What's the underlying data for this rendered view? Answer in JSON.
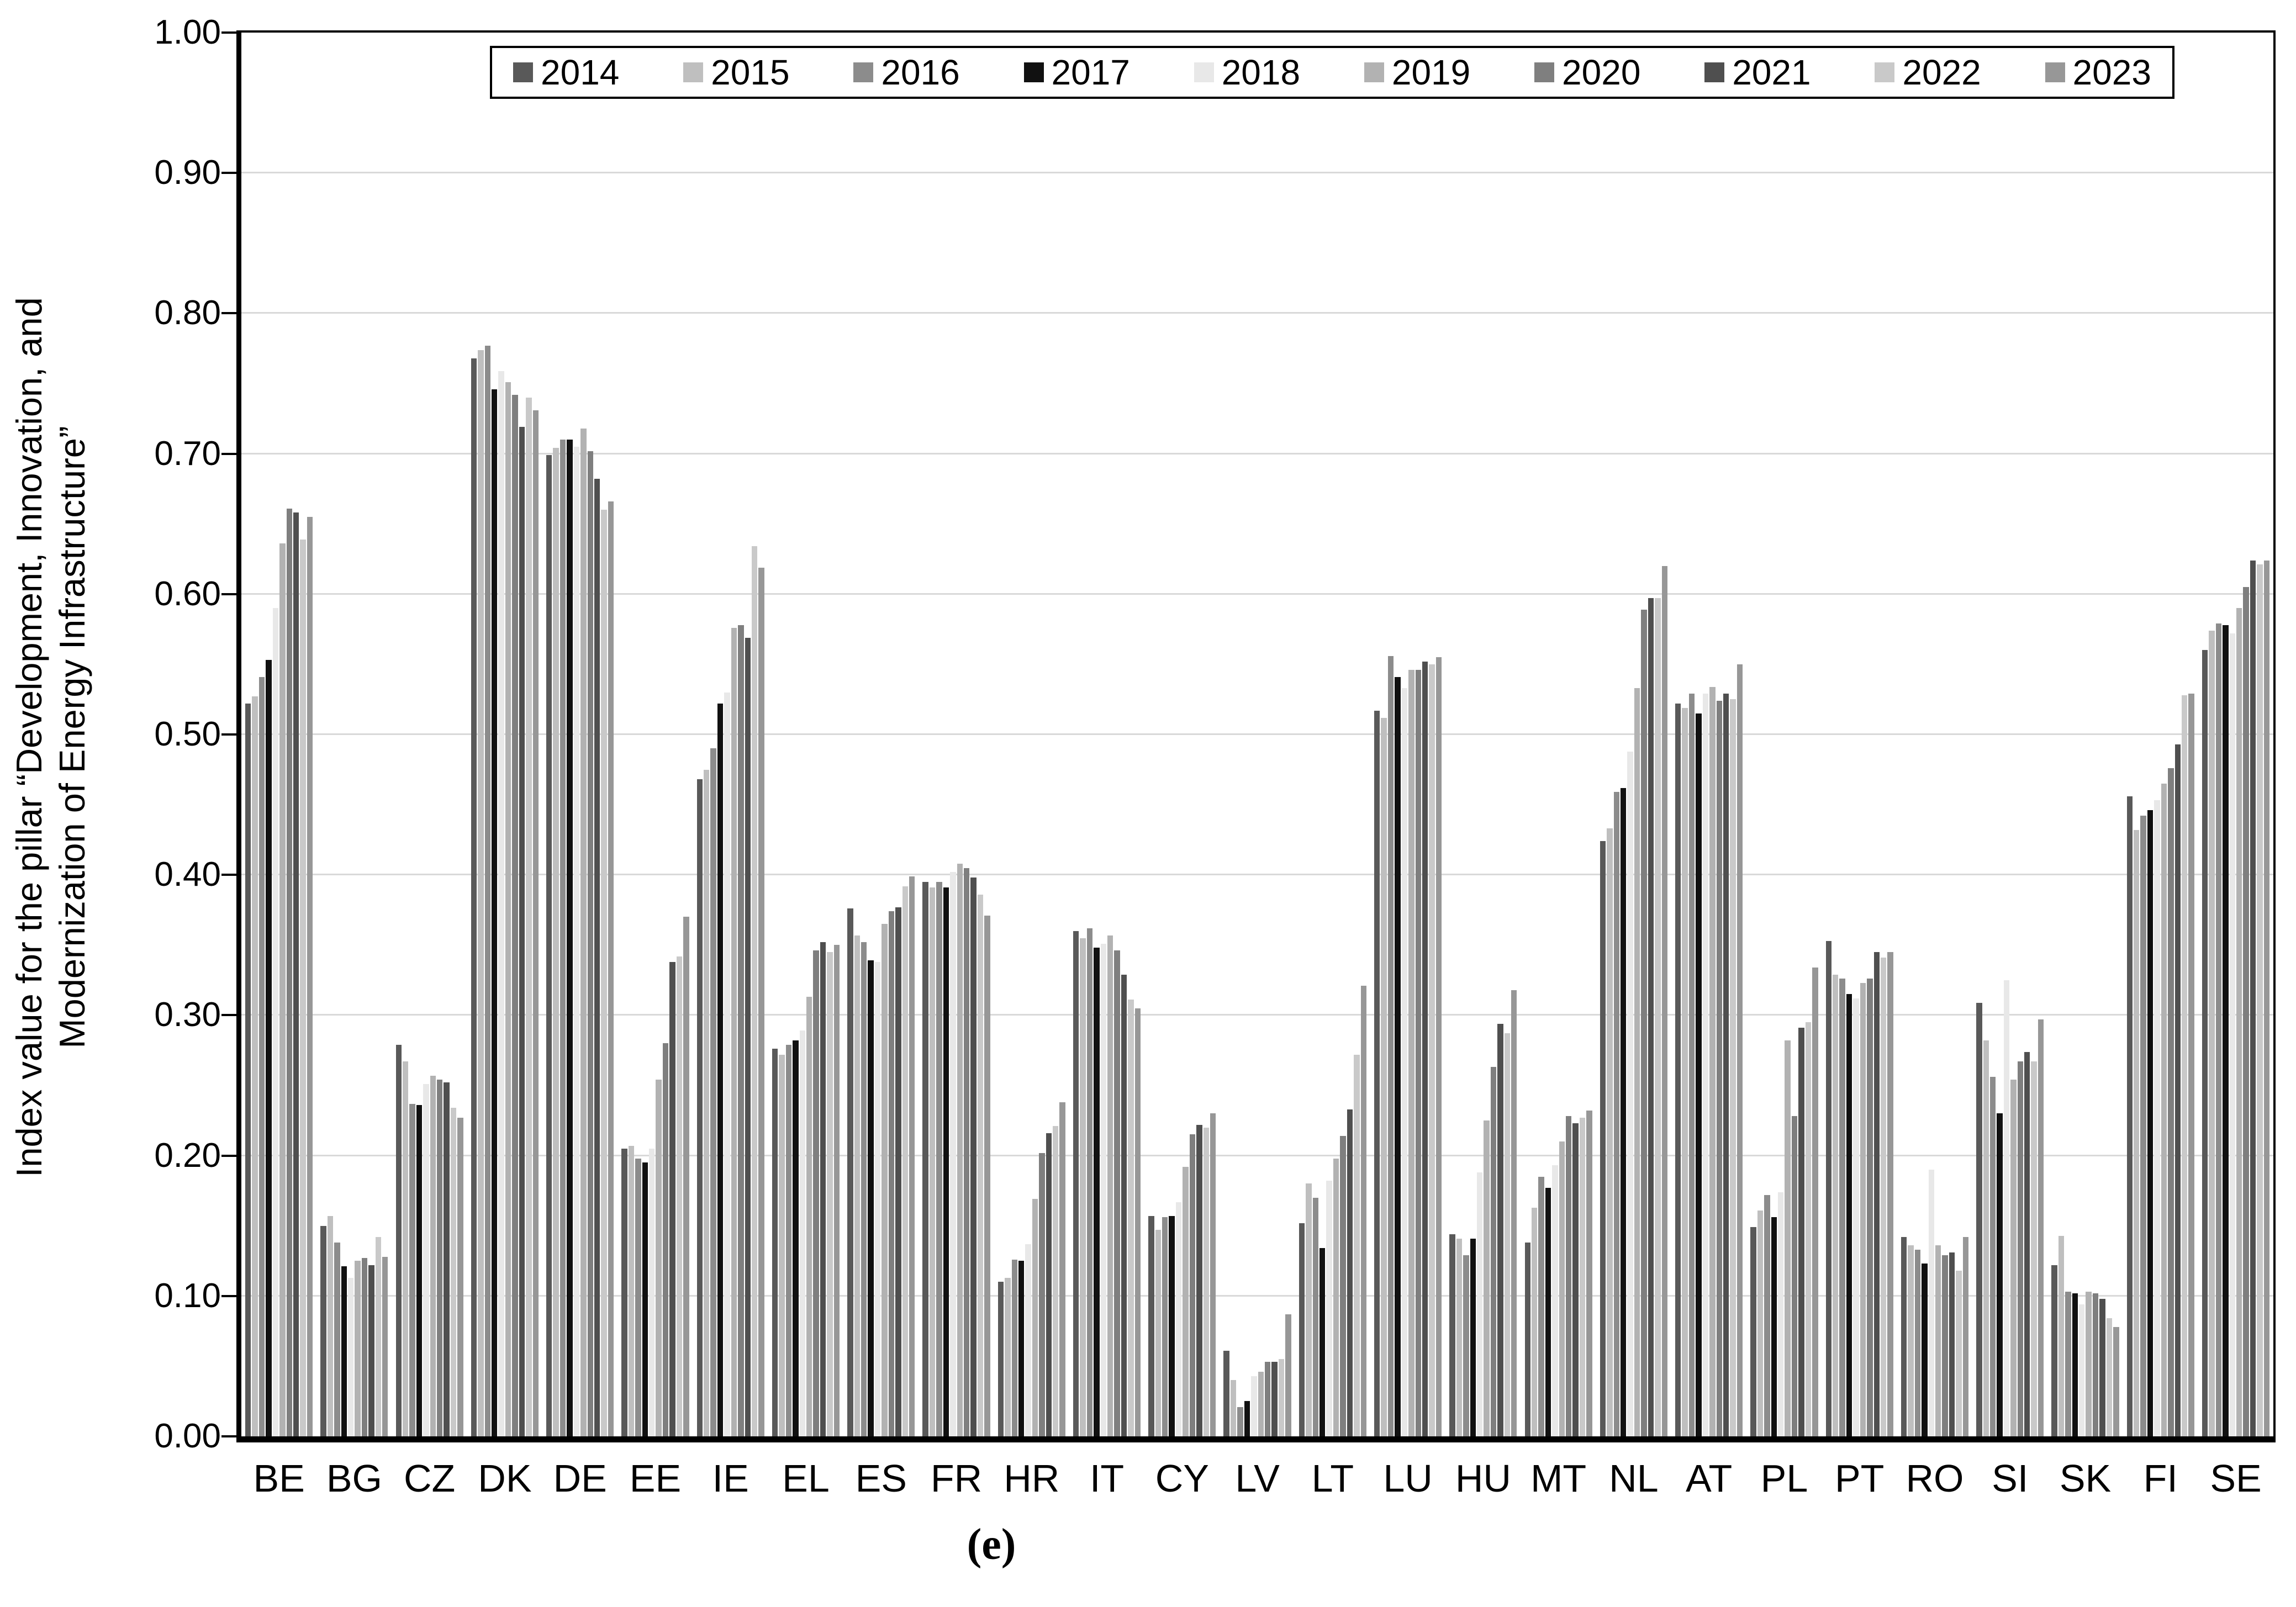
{
  "figure": {
    "caption": "(e)",
    "y_axis_title_line1": "Index value for the pillar “Development, Innovation, and",
    "y_axis_title_line2": "Modernization of Energy Infrastructure”"
  },
  "chart_data": {
    "type": "bar",
    "title": "",
    "xlabel": "",
    "ylabel": "Index value for the pillar “Development, Innovation, and Modernization of Energy Infrastructure”",
    "ylim": [
      0.0,
      1.0
    ],
    "ytick_step": 0.1,
    "ytick_labels": [
      "0.00",
      "0.10",
      "0.20",
      "0.30",
      "0.40",
      "0.50",
      "0.60",
      "0.70",
      "0.80",
      "0.90",
      "1.00"
    ],
    "grid": true,
    "gridline_color": "#d9d9d9",
    "legend_position": "top-center",
    "categories": [
      "BE",
      "BG",
      "CZ",
      "DK",
      "DE",
      "EE",
      "IE",
      "EL",
      "ES",
      "FR",
      "HR",
      "IT",
      "CY",
      "LV",
      "LT",
      "LU",
      "HU",
      "MT",
      "NL",
      "AT",
      "PL",
      "PT",
      "RO",
      "SI",
      "SK",
      "FI",
      "SE"
    ],
    "series": [
      {
        "name": "2014",
        "color": "#595959",
        "values": [
          0.522,
          0.15,
          0.279,
          0.768,
          0.699,
          0.205,
          0.468,
          0.276,
          0.376,
          0.395,
          0.11,
          0.36,
          0.157,
          0.061,
          0.152,
          0.517,
          0.144,
          0.138,
          0.424,
          0.522,
          0.149,
          0.353,
          0.142,
          0.309,
          0.122,
          0.456,
          0.56
        ]
      },
      {
        "name": "2015",
        "color": "#bfbfbf",
        "values": [
          0.527,
          0.157,
          0.267,
          0.774,
          0.704,
          0.207,
          0.475,
          0.272,
          0.357,
          0.391,
          0.113,
          0.355,
          0.147,
          0.04,
          0.18,
          0.512,
          0.141,
          0.163,
          0.433,
          0.519,
          0.161,
          0.329,
          0.136,
          0.282,
          0.143,
          0.432,
          0.574
        ]
      },
      {
        "name": "2016",
        "color": "#8c8c8c",
        "values": [
          0.541,
          0.138,
          0.237,
          0.777,
          0.71,
          0.198,
          0.49,
          0.279,
          0.352,
          0.395,
          0.126,
          0.362,
          0.156,
          0.021,
          0.17,
          0.556,
          0.129,
          0.185,
          0.459,
          0.529,
          0.172,
          0.326,
          0.133,
          0.256,
          0.103,
          0.442,
          0.579
        ]
      },
      {
        "name": "2017",
        "color": "#111111",
        "values": [
          0.553,
          0.121,
          0.236,
          0.746,
          0.71,
          0.195,
          0.522,
          0.282,
          0.339,
          0.391,
          0.125,
          0.348,
          0.157,
          0.025,
          0.134,
          0.541,
          0.141,
          0.177,
          0.462,
          0.515,
          0.156,
          0.315,
          0.123,
          0.23,
          0.102,
          0.446,
          0.578
        ]
      },
      {
        "name": "2018",
        "color": "#e8e8e8",
        "values": [
          0.59,
          0.113,
          0.251,
          0.759,
          0.705,
          0.205,
          0.53,
          0.289,
          0.338,
          0.402,
          0.137,
          0.351,
          0.167,
          0.043,
          0.182,
          0.533,
          0.188,
          0.193,
          0.488,
          0.529,
          0.174,
          0.312,
          0.19,
          0.325,
          0.094,
          0.453,
          0.572
        ]
      },
      {
        "name": "2019",
        "color": "#b2b2b2",
        "values": [
          0.636,
          0.125,
          0.257,
          0.751,
          0.718,
          0.254,
          0.576,
          0.313,
          0.365,
          0.408,
          0.169,
          0.357,
          0.192,
          0.046,
          0.198,
          0.546,
          0.225,
          0.21,
          0.533,
          0.534,
          0.282,
          0.323,
          0.136,
          0.254,
          0.103,
          0.465,
          0.59
        ]
      },
      {
        "name": "2020",
        "color": "#7f7f7f",
        "values": [
          0.661,
          0.127,
          0.254,
          0.742,
          0.702,
          0.28,
          0.578,
          0.346,
          0.374,
          0.405,
          0.202,
          0.346,
          0.215,
          0.053,
          0.214,
          0.546,
          0.263,
          0.228,
          0.589,
          0.524,
          0.228,
          0.326,
          0.129,
          0.267,
          0.102,
          0.476,
          0.605
        ]
      },
      {
        "name": "2021",
        "color": "#4f4f4f",
        "values": [
          0.658,
          0.122,
          0.252,
          0.719,
          0.682,
          0.338,
          0.569,
          0.352,
          0.377,
          0.398,
          0.216,
          0.329,
          0.222,
          0.053,
          0.233,
          0.552,
          0.294,
          0.223,
          0.597,
          0.529,
          0.291,
          0.345,
          0.131,
          0.274,
          0.098,
          0.493,
          0.624
        ]
      },
      {
        "name": "2022",
        "color": "#c9c9c9",
        "values": [
          0.639,
          0.142,
          0.234,
          0.74,
          0.66,
          0.342,
          0.634,
          0.345,
          0.392,
          0.386,
          0.221,
          0.311,
          0.22,
          0.055,
          0.272,
          0.55,
          0.287,
          0.227,
          0.597,
          0.525,
          0.295,
          0.341,
          0.118,
          0.267,
          0.084,
          0.528,
          0.621
        ]
      },
      {
        "name": "2023",
        "color": "#979797",
        "values": [
          0.655,
          0.128,
          0.227,
          0.731,
          0.666,
          0.37,
          0.619,
          0.35,
          0.399,
          0.371,
          0.238,
          0.305,
          0.23,
          0.087,
          0.321,
          0.555,
          0.318,
          0.232,
          0.62,
          0.55,
          0.334,
          0.345,
          0.142,
          0.297,
          0.078,
          0.529,
          0.624
        ]
      }
    ]
  }
}
